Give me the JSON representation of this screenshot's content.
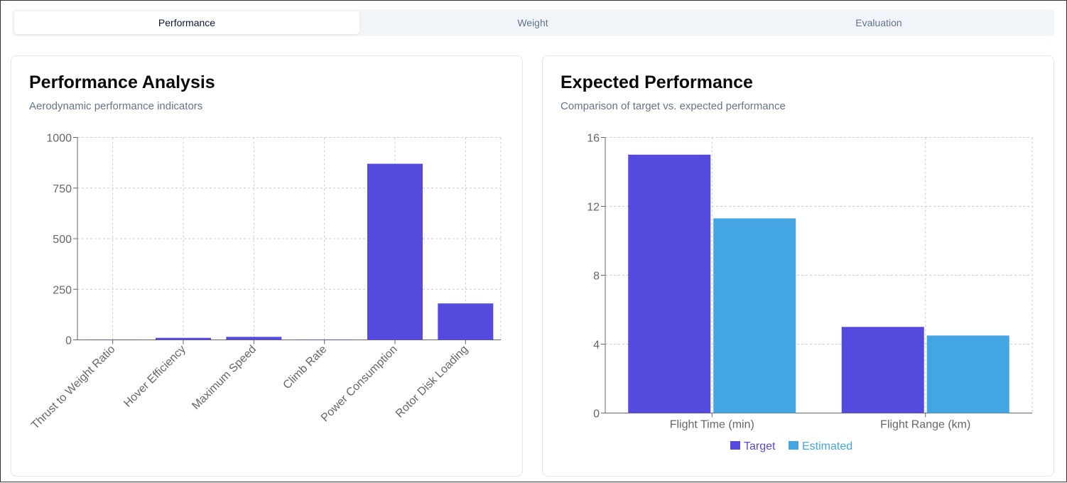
{
  "tabs": [
    {
      "label": "Performance",
      "active": true
    },
    {
      "label": "Weight",
      "active": false
    },
    {
      "label": "Evaluation",
      "active": false
    }
  ],
  "left_card": {
    "title": "Performance Analysis",
    "subtitle": "Aerodynamic performance indicators"
  },
  "right_card": {
    "title": "Expected Performance",
    "subtitle": "Comparison of target vs. expected performance"
  },
  "chart_data": [
    {
      "type": "bar",
      "categories": [
        "Thrust to Weight Ratio",
        "Hover Efficiency",
        "Maximum Speed",
        "Climb Rate",
        "Power Consumption",
        "Rotor Disk Loading"
      ],
      "values": [
        1.5,
        10,
        15,
        2,
        870,
        180
      ],
      "ylim": [
        0,
        1000
      ],
      "yticks": [
        0,
        250,
        500,
        750,
        1000
      ],
      "grid": true,
      "color": "#544ade"
    },
    {
      "type": "bar",
      "categories": [
        "Flight Time (min)",
        "Flight Range (km)"
      ],
      "series": [
        {
          "name": "Target",
          "values": [
            15,
            5
          ],
          "color": "#544ade"
        },
        {
          "name": "Estimated",
          "values": [
            11.3,
            4.5
          ],
          "color": "#44a5e3"
        }
      ],
      "ylim": [
        0,
        16
      ],
      "yticks": [
        0,
        4,
        8,
        12,
        16
      ],
      "grid": true,
      "legend": "bottom"
    }
  ]
}
